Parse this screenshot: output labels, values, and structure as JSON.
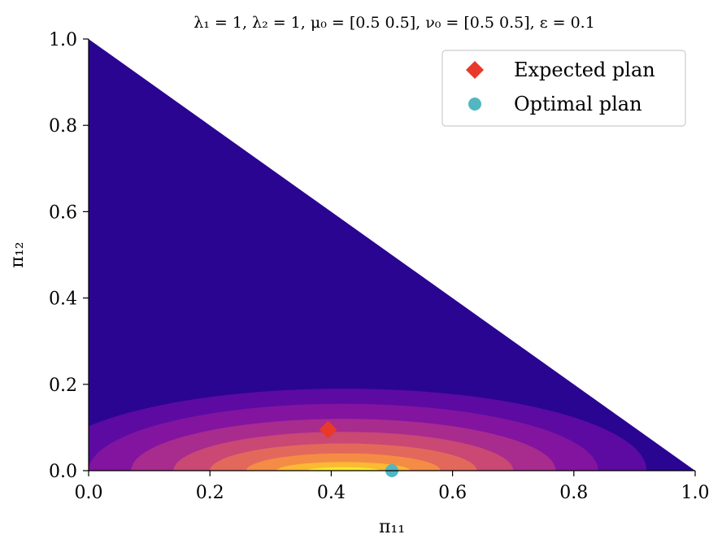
{
  "chart_data": {
    "type": "contour",
    "title": "λ₁ = 1, λ₂ = 1, μ₀ = [0.5 0.5], ν₀ = [0.5 0.5],  ε = 0.1",
    "xlabel": "π₁₁",
    "ylabel": "π₁₂",
    "xlim": [
      0,
      1
    ],
    "ylim": [
      0,
      1
    ],
    "x_ticks": [
      "0.0",
      "0.2",
      "0.4",
      "0.6",
      "0.8",
      "1.0"
    ],
    "y_ticks": [
      "0.0",
      "0.2",
      "0.4",
      "0.6",
      "0.8",
      "1.0"
    ],
    "domain": "simplex: π₁₁ + π₁₂ ≤ 1",
    "colormap": "plasma",
    "contour_levels": [
      {
        "color": "#2a0592",
        "cx": 0.42,
        "rx": 0.58,
        "ry": 0.24
      },
      {
        "color": "#5c0aa2",
        "cx": 0.42,
        "rx": 0.5,
        "ry": 0.19
      },
      {
        "color": "#8214a0",
        "cx": 0.42,
        "rx": 0.42,
        "ry": 0.155
      },
      {
        "color": "#a82b8e",
        "cx": 0.42,
        "rx": 0.35,
        "ry": 0.12
      },
      {
        "color": "#c94874",
        "cx": 0.42,
        "rx": 0.28,
        "ry": 0.09
      },
      {
        "color": "#e3685c",
        "cx": 0.42,
        "rx": 0.22,
        "ry": 0.063
      },
      {
        "color": "#f58c45",
        "cx": 0.42,
        "rx": 0.16,
        "ry": 0.04
      },
      {
        "color": "#fcb934",
        "cx": 0.42,
        "rx": 0.11,
        "ry": 0.02
      },
      {
        "color": "#f4e92a",
        "cx": 0.42,
        "rx": 0.06,
        "ry": 0.008
      }
    ],
    "points": [
      {
        "name": "Expected plan",
        "x": 0.395,
        "y": 0.095,
        "marker": "diamond",
        "color": "#e8392a"
      },
      {
        "name": "Optimal plan",
        "x": 0.5,
        "y": 0.0,
        "marker": "circle",
        "color": "#52b7c0"
      }
    ],
    "legend": {
      "position": "top-right"
    }
  }
}
